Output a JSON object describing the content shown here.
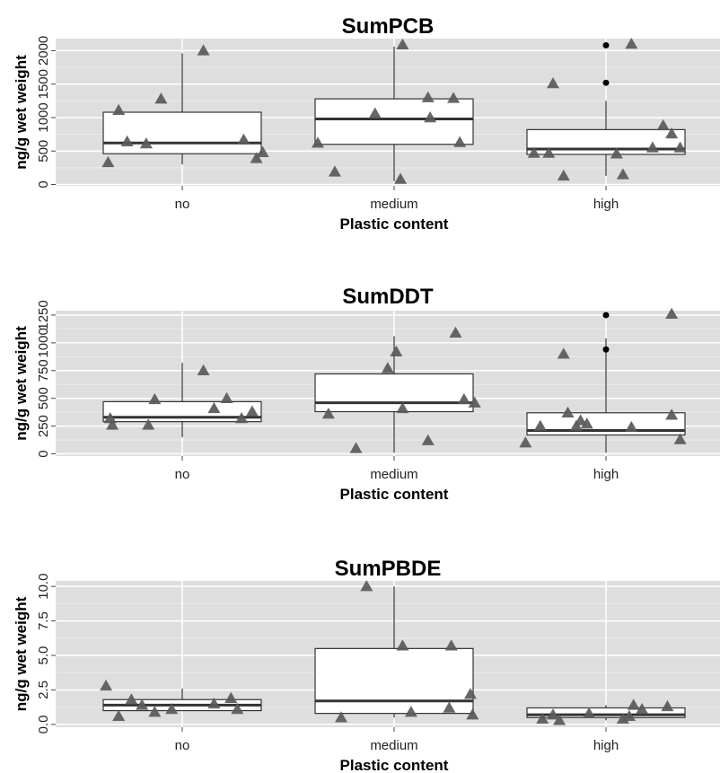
{
  "colors": {
    "panel_bg": "#dedede",
    "grid_major": "#ffffff",
    "grid_minor": "#ececec",
    "box_fill": "#ffffff",
    "box_stroke": "#333333",
    "point_fill": "#595959",
    "outlier": "#000000"
  },
  "chart_data": [
    {
      "type": "box",
      "title": "SumPCB",
      "xlabel": "Plastic content",
      "ylabel": "ng/g wet weight",
      "categories": [
        "no",
        "medium",
        "high"
      ],
      "ylim": [
        -20,
        2180
      ],
      "yticks": [
        0,
        500,
        1000,
        1500,
        2000
      ],
      "ytick_labels": [
        "0",
        "500",
        "1000",
        "1500",
        "2000"
      ],
      "grid": true,
      "boxes": [
        {
          "category": "no",
          "q1": 460,
          "median": 620,
          "q3": 1080,
          "whisker_low": 300,
          "whisker_high": 1960,
          "outliers": []
        },
        {
          "category": "medium",
          "q1": 600,
          "median": 980,
          "q3": 1280,
          "whisker_low": 50,
          "whisker_high": 2060,
          "outliers": []
        },
        {
          "category": "high",
          "q1": 450,
          "median": 530,
          "q3": 820,
          "whisker_low": 130,
          "whisker_high": 1250,
          "outliers": [
            2080,
            1520
          ]
        }
      ],
      "points": [
        {
          "category": "no",
          "jitter": -0.35,
          "y": 330
        },
        {
          "category": "no",
          "jitter": -0.3,
          "y": 1110
        },
        {
          "category": "no",
          "jitter": -0.26,
          "y": 640
        },
        {
          "category": "no",
          "jitter": -0.17,
          "y": 610
        },
        {
          "category": "no",
          "jitter": -0.1,
          "y": 1280
        },
        {
          "category": "no",
          "jitter": 0.1,
          "y": 2000
        },
        {
          "category": "no",
          "jitter": 0.29,
          "y": 670
        },
        {
          "category": "no",
          "jitter": 0.35,
          "y": 390
        },
        {
          "category": "no",
          "jitter": 0.38,
          "y": 480
        },
        {
          "category": "medium",
          "jitter": -0.36,
          "y": 620
        },
        {
          "category": "medium",
          "jitter": -0.28,
          "y": 190
        },
        {
          "category": "medium",
          "jitter": -0.09,
          "y": 1060
        },
        {
          "category": "medium",
          "jitter": 0.04,
          "y": 2090
        },
        {
          "category": "medium",
          "jitter": 0.03,
          "y": 80
        },
        {
          "category": "medium",
          "jitter": 0.16,
          "y": 1300
        },
        {
          "category": "medium",
          "jitter": 0.17,
          "y": 1000
        },
        {
          "category": "medium",
          "jitter": 0.28,
          "y": 1290
        },
        {
          "category": "medium",
          "jitter": 0.31,
          "y": 630
        },
        {
          "category": "high",
          "jitter": -0.34,
          "y": 470
        },
        {
          "category": "high",
          "jitter": -0.27,
          "y": 470
        },
        {
          "category": "high",
          "jitter": -0.2,
          "y": 130
        },
        {
          "category": "high",
          "jitter": -0.25,
          "y": 1510
        },
        {
          "category": "high",
          "jitter": 0.05,
          "y": 460
        },
        {
          "category": "high",
          "jitter": 0.08,
          "y": 150
        },
        {
          "category": "high",
          "jitter": 0.12,
          "y": 2100
        },
        {
          "category": "high",
          "jitter": 0.22,
          "y": 550
        },
        {
          "category": "high",
          "jitter": 0.27,
          "y": 880
        },
        {
          "category": "high",
          "jitter": 0.31,
          "y": 760
        },
        {
          "category": "high",
          "jitter": 0.35,
          "y": 550
        }
      ]
    },
    {
      "type": "box",
      "title": "SumDDT",
      "xlabel": "Plastic content",
      "ylabel": "ng/g wet weight",
      "categories": [
        "no",
        "medium",
        "high"
      ],
      "ylim": [
        -20,
        1290
      ],
      "yticks": [
        0,
        250,
        500,
        750,
        1000,
        1250
      ],
      "ytick_labels": [
        "0",
        "250",
        "500",
        "750",
        "1000",
        "1250"
      ],
      "grid": true,
      "boxes": [
        {
          "category": "no",
          "q1": 290,
          "median": 330,
          "q3": 470,
          "whisker_low": 150,
          "whisker_high": 820,
          "outliers": []
        },
        {
          "category": "medium",
          "q1": 380,
          "median": 460,
          "q3": 720,
          "whisker_low": 10,
          "whisker_high": 1060,
          "outliers": []
        },
        {
          "category": "high",
          "q1": 170,
          "median": 210,
          "q3": 370,
          "whisker_low": 10,
          "whisker_high": 1040,
          "outliers": [
            1250,
            940
          ]
        }
      ],
      "points": [
        {
          "category": "no",
          "jitter": -0.34,
          "y": 320
        },
        {
          "category": "no",
          "jitter": -0.33,
          "y": 260
        },
        {
          "category": "no",
          "jitter": -0.16,
          "y": 260
        },
        {
          "category": "no",
          "jitter": -0.13,
          "y": 490
        },
        {
          "category": "no",
          "jitter": 0.1,
          "y": 750
        },
        {
          "category": "no",
          "jitter": 0.15,
          "y": 410
        },
        {
          "category": "no",
          "jitter": 0.21,
          "y": 500
        },
        {
          "category": "no",
          "jitter": 0.28,
          "y": 320
        },
        {
          "category": "no",
          "jitter": 0.33,
          "y": 380
        },
        {
          "category": "medium",
          "jitter": -0.31,
          "y": 360
        },
        {
          "category": "medium",
          "jitter": -0.18,
          "y": 50
        },
        {
          "category": "medium",
          "jitter": 0.04,
          "y": 410
        },
        {
          "category": "medium",
          "jitter": -0.03,
          "y": 770
        },
        {
          "category": "medium",
          "jitter": 0.01,
          "y": 920
        },
        {
          "category": "medium",
          "jitter": 0.16,
          "y": 120
        },
        {
          "category": "medium",
          "jitter": 0.29,
          "y": 1090
        },
        {
          "category": "medium",
          "jitter": 0.33,
          "y": 490
        },
        {
          "category": "medium",
          "jitter": 0.38,
          "y": 460
        },
        {
          "category": "high",
          "jitter": -0.38,
          "y": 100
        },
        {
          "category": "high",
          "jitter": -0.31,
          "y": 250
        },
        {
          "category": "high",
          "jitter": -0.2,
          "y": 900
        },
        {
          "category": "high",
          "jitter": -0.18,
          "y": 370
        },
        {
          "category": "high",
          "jitter": -0.14,
          "y": 250
        },
        {
          "category": "high",
          "jitter": -0.12,
          "y": 300
        },
        {
          "category": "high",
          "jitter": -0.09,
          "y": 270
        },
        {
          "category": "high",
          "jitter": 0.12,
          "y": 240
        },
        {
          "category": "high",
          "jitter": 0.31,
          "y": 1260
        },
        {
          "category": "high",
          "jitter": 0.31,
          "y": 350
        },
        {
          "category": "high",
          "jitter": 0.35,
          "y": 130
        }
      ]
    },
    {
      "type": "box",
      "title": "SumPBDE",
      "xlabel": "Plastic content",
      "ylabel": "ng/g wet weight",
      "categories": [
        "no",
        "medium",
        "high"
      ],
      "ylim": [
        -0.2,
        10.4
      ],
      "yticks": [
        0,
        2.5,
        5,
        7.5,
        10
      ],
      "ytick_labels": [
        "0.0",
        "2.5",
        "5.0",
        "7.5",
        "10.0"
      ],
      "grid": true,
      "boxes": [
        {
          "category": "no",
          "q1": 1.0,
          "median": 1.4,
          "q3": 1.8,
          "whisker_low": 1.0,
          "whisker_high": 2.6,
          "outliers": []
        },
        {
          "category": "medium",
          "q1": 0.8,
          "median": 1.7,
          "q3": 5.5,
          "whisker_low": 0.5,
          "whisker_high": 10.0,
          "outliers": []
        },
        {
          "category": "high",
          "q1": 0.5,
          "median": 0.7,
          "q3": 1.2,
          "whisker_low": 0.3,
          "whisker_high": 1.4,
          "outliers": []
        }
      ],
      "points": [
        {
          "category": "no",
          "jitter": -0.36,
          "y": 2.8
        },
        {
          "category": "no",
          "jitter": -0.3,
          "y": 0.6
        },
        {
          "category": "no",
          "jitter": -0.24,
          "y": 1.8
        },
        {
          "category": "no",
          "jitter": -0.19,
          "y": 1.4
        },
        {
          "category": "no",
          "jitter": -0.13,
          "y": 0.9
        },
        {
          "category": "no",
          "jitter": -0.05,
          "y": 1.1
        },
        {
          "category": "no",
          "jitter": 0.15,
          "y": 1.5
        },
        {
          "category": "no",
          "jitter": 0.23,
          "y": 1.9
        },
        {
          "category": "no",
          "jitter": 0.26,
          "y": 1.1
        },
        {
          "category": "medium",
          "jitter": -0.25,
          "y": 0.5
        },
        {
          "category": "medium",
          "jitter": -0.13,
          "y": 10.0
        },
        {
          "category": "medium",
          "jitter": 0.08,
          "y": 0.9
        },
        {
          "category": "medium",
          "jitter": 0.04,
          "y": 5.7
        },
        {
          "category": "medium",
          "jitter": 0.27,
          "y": 5.7
        },
        {
          "category": "medium",
          "jitter": 0.26,
          "y": 1.2
        },
        {
          "category": "medium",
          "jitter": 0.36,
          "y": 2.2
        },
        {
          "category": "medium",
          "jitter": 0.37,
          "y": 0.7
        },
        {
          "category": "high",
          "jitter": -0.3,
          "y": 0.4
        },
        {
          "category": "high",
          "jitter": -0.25,
          "y": 0.7
        },
        {
          "category": "high",
          "jitter": -0.22,
          "y": 0.3
        },
        {
          "category": "high",
          "jitter": -0.08,
          "y": 0.8
        },
        {
          "category": "high",
          "jitter": 0.08,
          "y": 0.4
        },
        {
          "category": "high",
          "jitter": 0.11,
          "y": 0.6
        },
        {
          "category": "high",
          "jitter": 0.13,
          "y": 1.4
        },
        {
          "category": "high",
          "jitter": 0.17,
          "y": 1.1
        },
        {
          "category": "high",
          "jitter": 0.29,
          "y": 1.3
        }
      ]
    }
  ]
}
